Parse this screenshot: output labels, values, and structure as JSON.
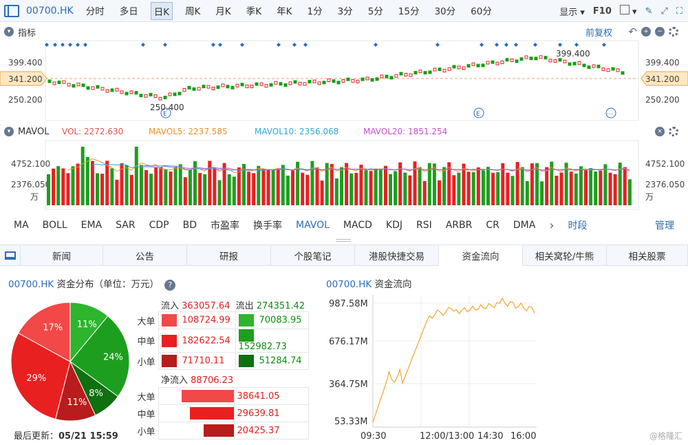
{
  "toolbar": {
    "stock_code": "00700.HK",
    "tabs": [
      "分时",
      "多日",
      "日K",
      "周K",
      "月K",
      "季K",
      "年K",
      "1分",
      "3分",
      "5分",
      "15分",
      "30分",
      "60分"
    ],
    "active_tab": "日K",
    "display_label": "显示",
    "f10_label": "F10"
  },
  "indicator": {
    "title": "指标",
    "adjust_label": "前复权",
    "ticks": [
      "399.400",
      "341.200",
      "250.200"
    ],
    "high_label": "399.400",
    "low_label": "250.400",
    "current_price": "341.200",
    "markers": [
      "E",
      "E",
      "⋯"
    ]
  },
  "mavol": {
    "title": "MAVOL",
    "vol": "VOL: 2272.630",
    "mavol5": "MAVOL5: 2237.585",
    "mavol10": "MAVOL10: 2356.068",
    "mavol20": "MAVOL20: 1851.254",
    "ticks": [
      "4752.100",
      "2376.050"
    ],
    "unit": "万",
    "colors": {
      "vol": "#e05050",
      "mavol5": "#e8912d",
      "mavol10": "#2fa6d9",
      "mavol20": "#c64fd0"
    }
  },
  "indicator_tabs": [
    "MA",
    "BOLL",
    "EMA",
    "SAR",
    "CDP",
    "BD",
    "市盈率",
    "换手率",
    "MAVOL",
    "MACD",
    "KDJ",
    "RSI",
    "ARBR",
    "CR",
    "DMA"
  ],
  "indicator_selected": "MAVOL",
  "time_label": "时段",
  "manage_label": "管理",
  "bottom_tabs": [
    "新闻",
    "公告",
    "研报",
    "个股笔记",
    "港股快捷交易",
    "资金流向",
    "相关窝轮/牛熊",
    "相关股票"
  ],
  "bottom_active": "资金流向",
  "distribution": {
    "code": "00700.HK",
    "title": "资金分布（单位：万元）",
    "inflow_label": "流入",
    "inflow_total": "363057.64",
    "outflow_label": "流出",
    "outflow_total": "274351.42",
    "rows": [
      {
        "label": "大单",
        "in": "108724.99",
        "out": "70083.95"
      },
      {
        "label": "中单",
        "in": "182622.54",
        "out": "152982.73"
      },
      {
        "label": "小单",
        "in": "71710.11",
        "out": "51284.74"
      }
    ],
    "net_label": "净流入",
    "net_total": "88706.23",
    "net_rows": [
      {
        "label": "大单",
        "value": "38641.05"
      },
      {
        "label": "中单",
        "value": "29639.81"
      },
      {
        "label": "小单",
        "value": "20425.37"
      }
    ],
    "updated_label": "最后更新：",
    "updated_value": "05/21 15:59",
    "pie": [
      {
        "label": "11%",
        "value": 11,
        "color": "#2db52d"
      },
      {
        "label": "24%",
        "value": 24,
        "color": "#1e9e1e"
      },
      {
        "label": "8%",
        "value": 8,
        "color": "#0f7010"
      },
      {
        "label": "11%",
        "value": 11,
        "color": "#b81c1c"
      },
      {
        "label": "29%",
        "value": 29,
        "color": "#e82020"
      },
      {
        "label": "17%",
        "value": 17,
        "color": "#f24848"
      }
    ]
  },
  "flow_chart": {
    "code": "00700.HK",
    "title": "资金流向",
    "y_ticks": [
      "987.58M",
      "676.17M",
      "364.75M",
      "53.33M"
    ],
    "x_ticks": [
      "09:30",
      "12:00/13:00",
      "14:30",
      "16:00"
    ]
  },
  "watermark": "@格隆汇"
}
